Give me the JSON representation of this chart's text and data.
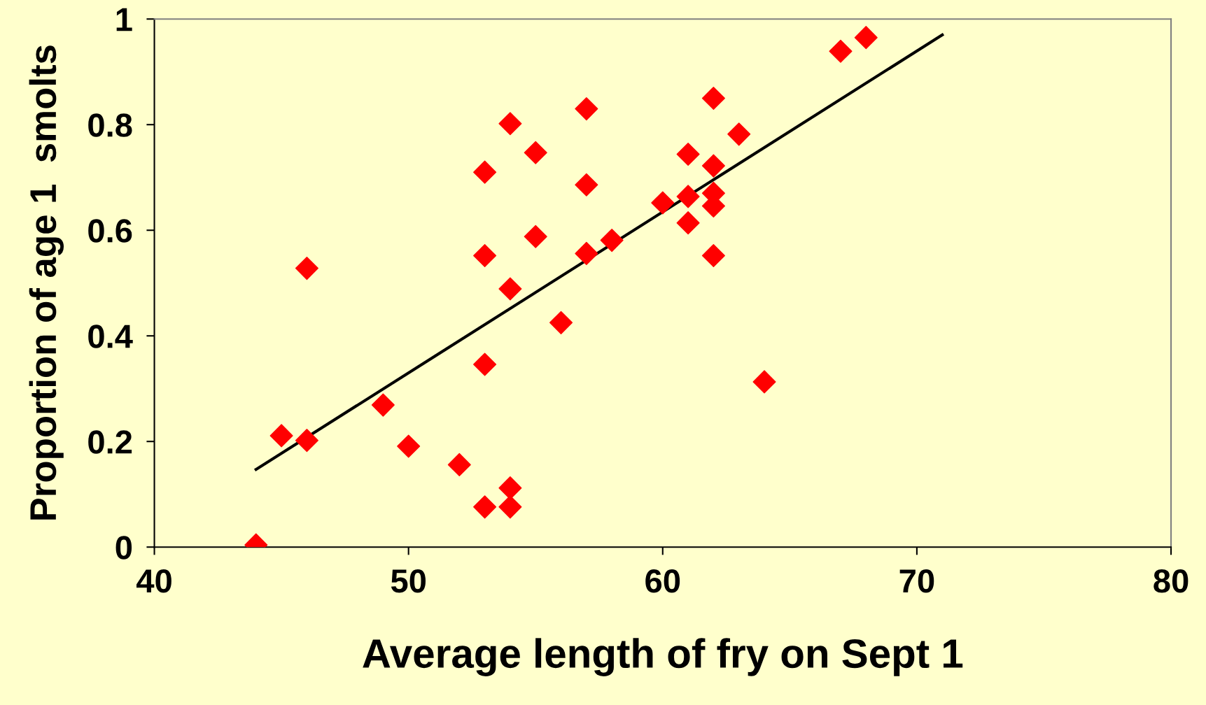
{
  "chart_data": {
    "type": "scatter",
    "xlabel": "Average length of fry on Sept 1",
    "ylabel": "Proportion of age 1  smolts",
    "xlim": [
      40,
      80
    ],
    "xticks": [
      40,
      50,
      60,
      70,
      80
    ],
    "ylim": [
      0,
      1
    ],
    "yticks": [
      0,
      0.2,
      0.4,
      0.6,
      0.8,
      1
    ],
    "grid": false,
    "legend": false,
    "series": [
      {
        "marker": "diamond",
        "color": "#ff0000",
        "x": [
          44,
          45,
          46,
          46,
          49,
          50,
          52,
          53,
          53,
          53,
          53,
          54,
          54,
          54,
          54,
          55,
          55,
          56,
          57,
          57,
          57,
          58,
          60,
          61,
          61,
          61,
          62,
          62,
          62,
          62,
          62,
          63,
          64,
          67,
          68
        ],
        "values": [
          0.004,
          0.211,
          0.202,
          0.528,
          0.269,
          0.191,
          0.156,
          0.076,
          0.346,
          0.552,
          0.71,
          0.076,
          0.112,
          0.489,
          0.802,
          0.588,
          0.747,
          0.425,
          0.556,
          0.686,
          0.83,
          0.581,
          0.652,
          0.614,
          0.664,
          0.744,
          0.552,
          0.646,
          0.67,
          0.722,
          0.85,
          0.782,
          0.313,
          0.939,
          0.965
        ]
      },
      {
        "type": "line",
        "color": "#000000",
        "x": [
          44,
          71
        ],
        "values": [
          0.147,
          0.97
        ]
      }
    ]
  }
}
